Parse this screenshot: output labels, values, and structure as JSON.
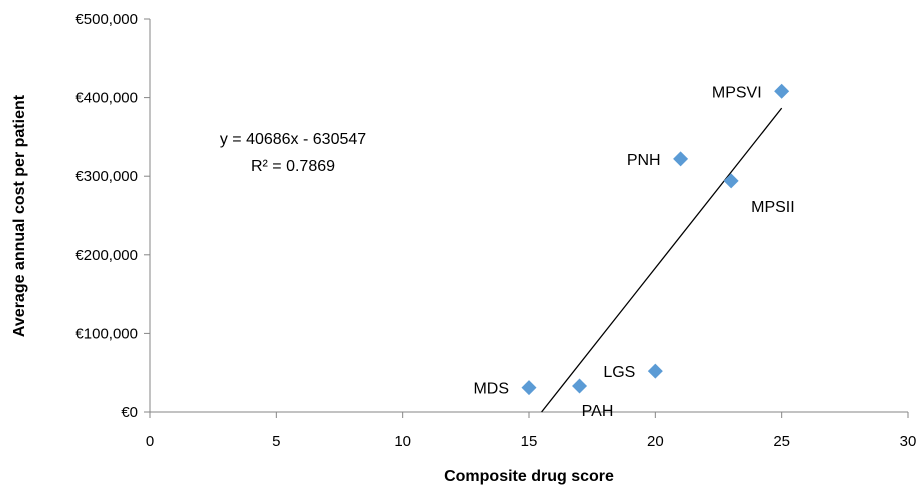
{
  "chart_data": {
    "type": "scatter",
    "xlabel": "Composite drug score",
    "ylabel": "Average annual cost per patient",
    "xlim": [
      0,
      30
    ],
    "ylim": [
      0,
      500000
    ],
    "x_ticks": [
      0,
      5,
      10,
      15,
      20,
      25,
      30
    ],
    "y_ticks": [
      0,
      100000,
      200000,
      300000,
      400000,
      500000
    ],
    "y_tick_labels": [
      "€0",
      "€100,000",
      "€200,000",
      "€300,000",
      "€400,000",
      "€500,000"
    ],
    "grid": false,
    "legend": "none",
    "marker_color": "#5B9BD5",
    "marker_shape": "diamond",
    "points": [
      {
        "label": "MPSVI",
        "x": 25,
        "y": 408000,
        "label_pos": "left"
      },
      {
        "label": "PNH",
        "x": 21,
        "y": 322000,
        "label_pos": "left"
      },
      {
        "label": "MPSII",
        "x": 23,
        "y": 294000,
        "label_pos": "below-right"
      },
      {
        "label": "LGS",
        "x": 20,
        "y": 52000,
        "label_pos": "left"
      },
      {
        "label": "MDS",
        "x": 15,
        "y": 31000,
        "label_pos": "left"
      },
      {
        "label": "PAH",
        "x": 17,
        "y": 33000,
        "label_pos": "below"
      }
    ],
    "trendline": {
      "type": "linear",
      "slope": 40686,
      "intercept": -630547,
      "color": "#000000",
      "equation_text": "y = 40686x - 630547",
      "r2_text": "R² = 0.7869"
    }
  }
}
